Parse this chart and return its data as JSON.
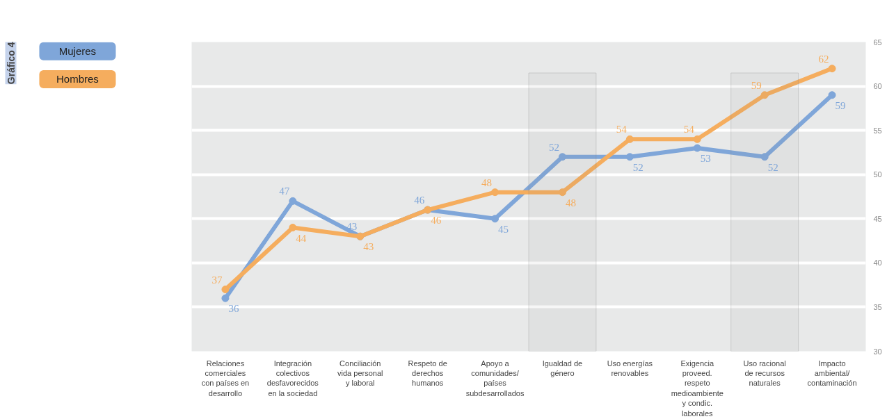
{
  "chart_data": {
    "type": "line",
    "title": "Gráfico 4",
    "categories": [
      "Relaciones comerciales con países en desarrollo",
      "Integración colectivos desfavorecidos en la sociedad",
      "Conciliación vida personal y laboral",
      "Respeto de derechos humanos",
      "Apoyo a comunidades/ países subdesarrollados",
      "Igualdad de género",
      "Uso energías renovables",
      "Exigencia proveed. respeto medioambiente y condic. laborales",
      "Uso racional de recursos naturales",
      "Impacto ambiental/ contaminación"
    ],
    "series": [
      {
        "name": "Mujeres",
        "color": "#7fa6d9",
        "values": [
          36,
          47,
          43,
          46,
          45,
          52,
          52,
          53,
          52,
          59
        ]
      },
      {
        "name": "Hombres",
        "color": "#f5ad5e",
        "values": [
          37,
          44,
          43,
          46,
          48,
          48,
          54,
          54,
          59,
          62
        ]
      }
    ],
    "ylim": [
      30,
      65
    ],
    "yticks": [
      30,
      35,
      40,
      45,
      50,
      55,
      60,
      65
    ],
    "bands": [
      {
        "axis": "x",
        "from": "Igualdad de género",
        "to": "Igualdad de género",
        "color": "#888888"
      },
      {
        "axis": "x",
        "from": "Uso racional de recursos naturales",
        "to": "Uso racional de recursos naturales",
        "color": "#888888"
      }
    ],
    "data_labels": true,
    "grid": "y",
    "legend": "top left",
    "marker": "circle",
    "line_style": "solid"
  }
}
